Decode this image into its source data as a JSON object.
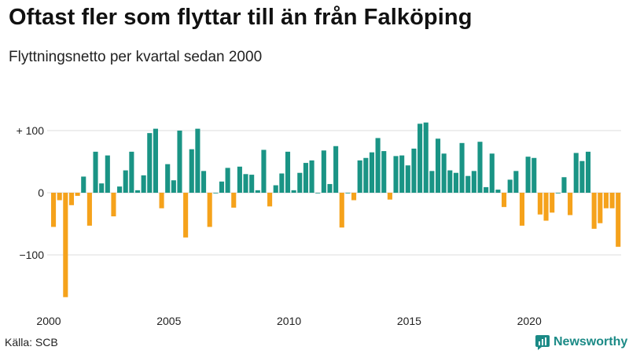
{
  "header": {
    "title": "Oftast fler som flyttar till än från Falköping",
    "subtitle": "Flyttningsnetto per kvartal sedan 2000"
  },
  "footer": {
    "source": "Källa: SCB",
    "brand": "Newsworthy"
  },
  "colors": {
    "positive": "#1a9485",
    "negative": "#f5a21b",
    "grid": "#dddddd",
    "brand": "#1b8a86"
  },
  "chart_data": {
    "type": "bar",
    "title": "Oftast fler som flyttar till än från Falköping",
    "subtitle": "Flyttningsnetto per kvartal sedan 2000",
    "xlabel": "",
    "ylabel": "",
    "ylim": [
      -180,
      130
    ],
    "y_ticks": [
      {
        "value": 100,
        "label": "+ 100"
      },
      {
        "value": 0,
        "label": "0"
      },
      {
        "value": -100,
        "label": "−100"
      }
    ],
    "x_tick_labels": [
      "2000",
      "2005",
      "2010",
      "2015",
      "2020"
    ],
    "start_year": 2000,
    "values": [
      -55,
      -12,
      -168,
      -20,
      -5,
      26,
      -53,
      66,
      15,
      60,
      -38,
      10,
      36,
      66,
      4,
      28,
      96,
      103,
      -25,
      46,
      20,
      100,
      -72,
      70,
      103,
      35,
      -55,
      0,
      18,
      40,
      -24,
      42,
      30,
      29,
      4,
      69,
      -22,
      12,
      31,
      66,
      4,
      32,
      48,
      52,
      0,
      68,
      14,
      75,
      -56,
      0,
      -12,
      52,
      56,
      65,
      88,
      67,
      -11,
      59,
      60,
      44,
      71,
      111,
      113,
      35,
      87,
      63,
      36,
      32,
      80,
      27,
      35,
      82,
      9,
      63,
      5,
      -23,
      21,
      35,
      -53,
      58,
      56,
      -35,
      -45,
      -32,
      0,
      25,
      -36,
      64,
      51,
      66,
      -58,
      -49,
      -25,
      -25,
      -87
    ]
  }
}
